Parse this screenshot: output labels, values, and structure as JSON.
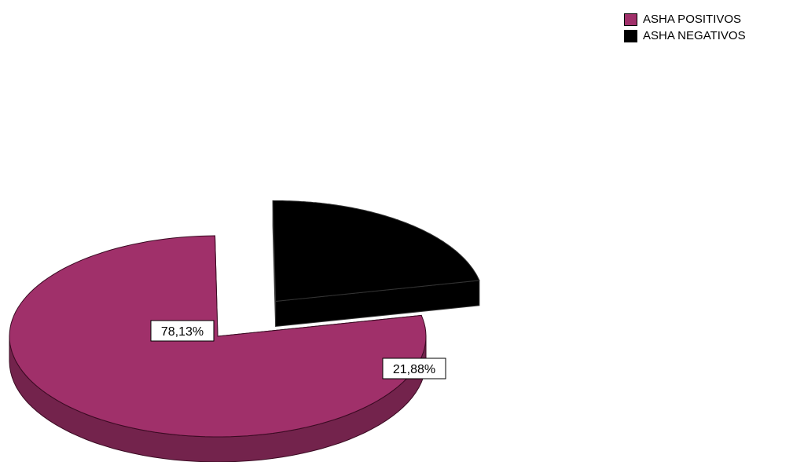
{
  "chart_data": {
    "type": "pie",
    "title": "",
    "legend_position": "top-right",
    "style": "3d-exploded",
    "slices": [
      {
        "label": "ASHA POSITIVOS",
        "value": 78.13,
        "display": "78,13%",
        "color": "#a0306a"
      },
      {
        "label": "ASHA NEGATIVOS",
        "value": 21.88,
        "display": "21,88%",
        "color": "#000000"
      }
    ]
  }
}
